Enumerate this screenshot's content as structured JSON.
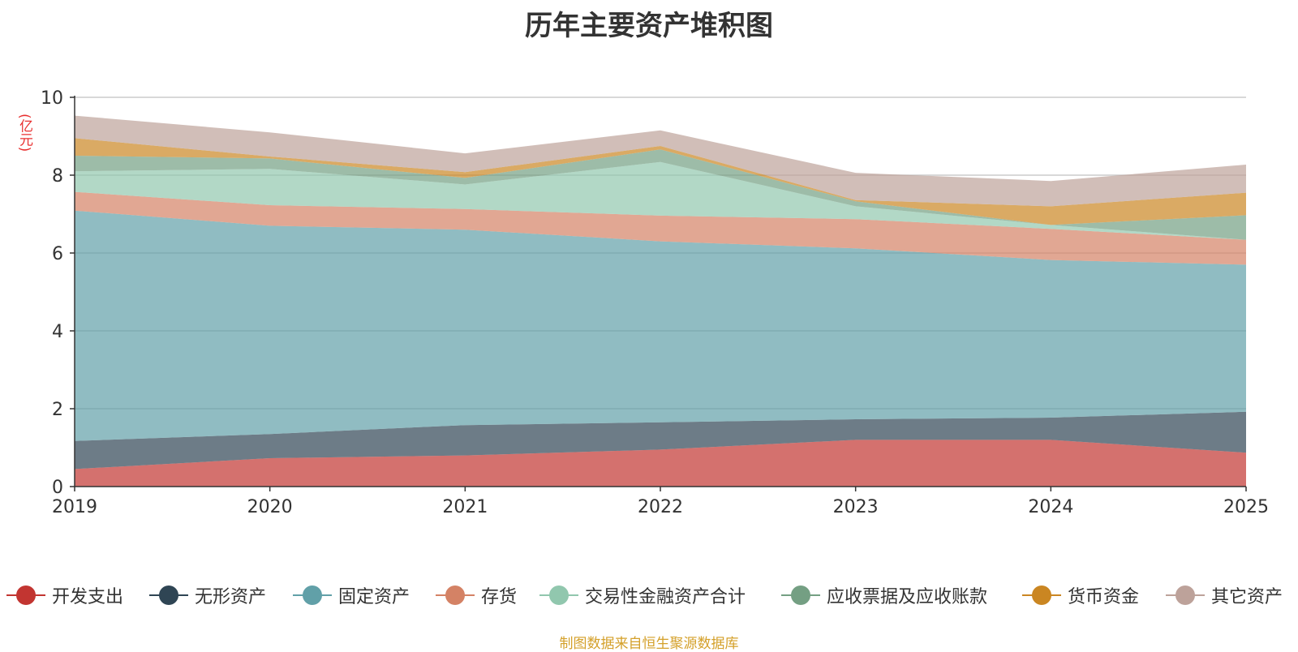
{
  "chart_data": {
    "type": "area",
    "stacked": true,
    "title": "历年主要资产堆积图",
    "ylabel": "(亿元)",
    "xlabel": "",
    "categories": [
      "2019",
      "2020",
      "2021",
      "2022",
      "2023",
      "2024",
      "2025"
    ],
    "ylim": [
      0,
      10
    ],
    "yticks": [
      0,
      2,
      4,
      6,
      8,
      10
    ],
    "grid": true,
    "legend_position": "bottom",
    "series": [
      {
        "name": "开发支出",
        "color": "#c23531",
        "values": [
          0.45,
          0.73,
          0.8,
          0.95,
          1.2,
          1.2,
          0.87
        ]
      },
      {
        "name": "无形资产",
        "color": "#2f4554",
        "values": [
          0.72,
          0.62,
          0.78,
          0.7,
          0.53,
          0.57,
          1.05
        ]
      },
      {
        "name": "固定资产",
        "color": "#61a0a8",
        "values": [
          5.92,
          5.35,
          5.02,
          4.65,
          4.39,
          4.05,
          3.78
        ]
      },
      {
        "name": "存货",
        "color": "#d48265",
        "values": [
          0.48,
          0.53,
          0.53,
          0.66,
          0.75,
          0.8,
          0.64
        ]
      },
      {
        "name": "交易性金融资产合计",
        "color": "#91c7ae",
        "values": [
          0.53,
          0.93,
          0.63,
          1.38,
          0.33,
          0.1,
          0.0
        ]
      },
      {
        "name": "应收票据及应收账款",
        "color": "#749f83",
        "values": [
          0.4,
          0.27,
          0.17,
          0.32,
          0.13,
          0.0,
          0.63
        ]
      },
      {
        "name": "货币资金",
        "color": "#ca8622",
        "values": [
          0.45,
          0.05,
          0.15,
          0.09,
          0.03,
          0.48,
          0.58
        ]
      },
      {
        "name": "其它资产",
        "color": "#bda29a",
        "values": [
          0.58,
          0.62,
          0.48,
          0.4,
          0.7,
          0.65,
          0.72
        ]
      }
    ]
  },
  "source_note": "制图数据来自恒生聚源数据库"
}
